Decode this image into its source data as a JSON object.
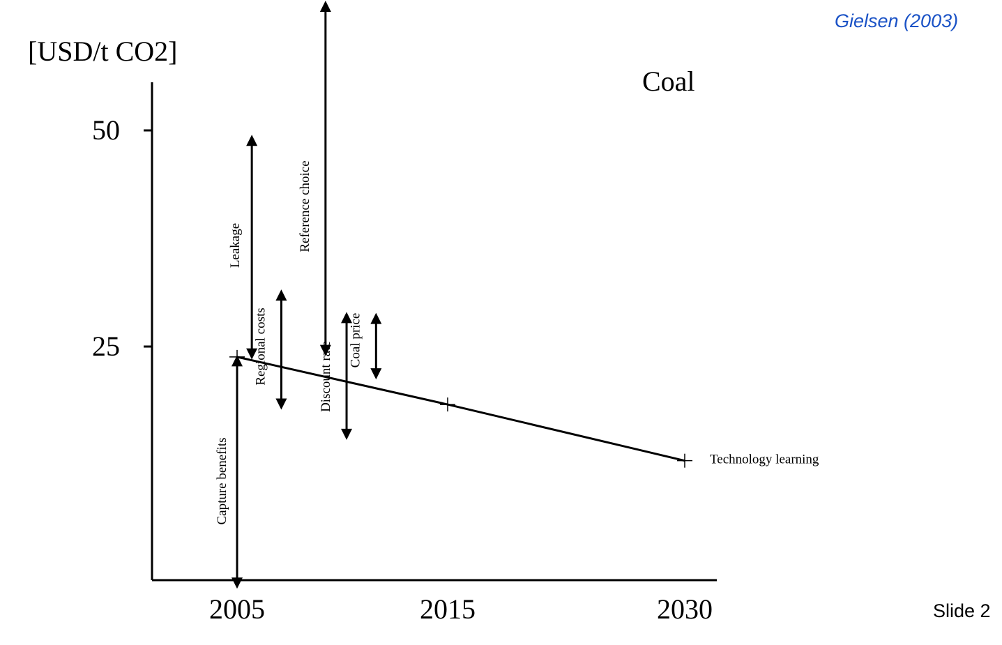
{
  "citation": "Gielsen (2003)",
  "slide_label": "Slide 2",
  "colors": {
    "citation": "#1a52c6",
    "ink": "#000000",
    "background": "#ffffff"
  },
  "chart_data": {
    "type": "line",
    "title": "Coal",
    "ylabel": "[USD/t CO2]",
    "xlabel": "",
    "x_categories": [
      "2005",
      "2015",
      "2030"
    ],
    "y_ticks": [
      25,
      50
    ],
    "ylim": [
      0,
      55
    ],
    "series": [
      {
        "name": "Technology learning",
        "label": "Technology learning",
        "points": [
          {
            "x": "2005",
            "y": 23.8
          },
          {
            "x": "2015",
            "y": 18.3
          },
          {
            "x": "2030",
            "y": 11.8
          }
        ]
      }
    ],
    "ranges": [
      {
        "label": "Capture benefits",
        "x": 2005.0,
        "y_low": -3,
        "y_high": 24
      },
      {
        "label": "Leakage",
        "x": 2005.7,
        "y_low": 23.5,
        "y_high": 49.5
      },
      {
        "label": "Regional costs",
        "x": 2007.1,
        "y_low": 17.7,
        "y_high": 31.6
      },
      {
        "label": "Reference choice",
        "x": 2009.2,
        "y_low": 23.9,
        "y_high": 65
      },
      {
        "label": "Discount rate",
        "x": 2010.2,
        "y_low": 14.2,
        "y_high": 29.0
      },
      {
        "label": "Coal price",
        "x": 2011.6,
        "y_low": 21.2,
        "y_high": 28.9
      }
    ]
  }
}
